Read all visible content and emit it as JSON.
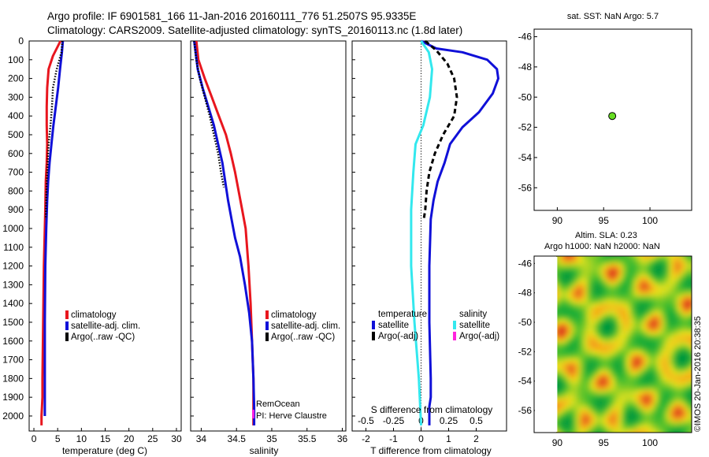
{
  "header": {
    "line1": "Argo profile: IF 6901581_166 11-Jan-2016 20160111_776 51.2507S 95.9335E",
    "line2": "Climatology: CARS2009. Satellite-adjusted climatology: synTS_20160113.nc (1.8d later)"
  },
  "colors": {
    "climatology": "#e8161e",
    "satellite": "#1010d8",
    "argo": "#000000",
    "salinity_sat": "#33e8ee",
    "salinity_argo": "#ff22dd",
    "sst_dot": "#66dd22"
  },
  "depth_ticks": [
    "0",
    "100",
    "200",
    "300",
    "400",
    "500",
    "600",
    "700",
    "800",
    "900",
    "1000",
    "1100",
    "1200",
    "1300",
    "1400",
    "1500",
    "1600",
    "1700",
    "1800",
    "1900",
    "2000"
  ],
  "legend": {
    "climatology": "climatology",
    "satellite": "satellite-adj. clim.",
    "argo": "Argo(..raw -QC)"
  },
  "remocean": {
    "line1": "RemOcean",
    "line2": "PI: Herve Claustre"
  },
  "diff_legend": {
    "temperature": "temperature",
    "salinity": "salinity",
    "satellite": "satellite",
    "argo_adj": "Argo(-adj)"
  },
  "map_top": {
    "title": "sat. SST: NaN Argo: 5.7"
  },
  "map_bottom": {
    "title1": "Altim. SLA: 0.23",
    "title2": "Argo h1000: NaN h2000: NaN"
  },
  "credit": "©IMOS 20-Jan-2016 20:38:35",
  "chart_data": [
    {
      "type": "line",
      "xlabel": "temperature (deg C)",
      "xlim": [
        -1,
        31
      ],
      "xticks": [
        "0",
        "5",
        "10",
        "15",
        "20",
        "25",
        "30"
      ],
      "ylim": [
        2080,
        0
      ],
      "series": [
        {
          "name": "climatology",
          "style": "solid",
          "color": "#e8161e",
          "x": [
            5.6,
            4.0,
            3.1,
            2.8,
            2.7,
            2.7,
            2.8,
            2.7,
            2.5,
            2.4,
            2.3,
            2.1,
            2.0,
            1.9,
            1.8,
            1.8,
            1.7,
            1.6,
            1.6
          ],
          "y": [
            0,
            80,
            150,
            250,
            350,
            450,
            550,
            650,
            750,
            900,
            1000,
            1200,
            1400,
            1600,
            1800,
            1900,
            1950,
            2000,
            2050
          ]
        },
        {
          "name": "satellite-adj. clim.",
          "style": "solid",
          "color": "#1010d8",
          "x": [
            6.1,
            5.9,
            5.5,
            5.1,
            4.6,
            4.1,
            3.7,
            3.3,
            3.0,
            2.8,
            2.6,
            2.4,
            2.3,
            2.3,
            2.3,
            2.3
          ],
          "y": [
            0,
            60,
            150,
            250,
            350,
            450,
            550,
            650,
            750,
            850,
            1000,
            1200,
            1500,
            1800,
            1950,
            2000
          ]
        },
        {
          "name": "Argo(..raw -QC)",
          "style": "dotted",
          "color": "#000000",
          "x": [
            6.0,
            5.8,
            4.8,
            4.0,
            3.8,
            3.5,
            3.1,
            2.9,
            2.7,
            2.6,
            2.5
          ],
          "y": [
            0,
            60,
            150,
            250,
            350,
            450,
            550,
            650,
            750,
            850,
            950
          ]
        }
      ]
    },
    {
      "type": "line",
      "xlabel": "salinity",
      "xlim": [
        33.85,
        36.05
      ],
      "xticks": [
        "34",
        "34.5",
        "35",
        "35.5",
        "36"
      ],
      "ylim": [
        2080,
        0
      ],
      "series": [
        {
          "name": "climatology",
          "style": "solid",
          "color": "#e8161e",
          "x": [
            33.93,
            33.96,
            34.05,
            34.15,
            34.25,
            34.35,
            34.42,
            34.48,
            34.53,
            34.58,
            34.63,
            34.67,
            34.7,
            34.72,
            34.74,
            34.74,
            34.74,
            34.74
          ],
          "y": [
            0,
            100,
            200,
            300,
            400,
            500,
            600,
            700,
            800,
            900,
            1000,
            1200,
            1400,
            1600,
            1800,
            1900,
            2000,
            2050
          ]
        },
        {
          "name": "satellite-adj. clim.",
          "style": "solid",
          "color": "#1010d8",
          "x": [
            33.9,
            33.92,
            33.95,
            34.02,
            34.1,
            34.18,
            34.24,
            34.3,
            34.34,
            34.38,
            34.43,
            34.48,
            34.55,
            34.62,
            34.68,
            34.72,
            34.74,
            34.75,
            34.75,
            34.75
          ],
          "y": [
            0,
            60,
            150,
            250,
            350,
            450,
            550,
            650,
            750,
            850,
            950,
            1050,
            1150,
            1300,
            1450,
            1600,
            1800,
            1950,
            2000,
            2050
          ]
        },
        {
          "name": "Argo(..raw -QC)",
          "style": "dotted",
          "color": "#000000",
          "x": [
            33.9,
            33.93,
            33.98,
            34.05,
            34.12,
            34.18,
            34.24,
            34.28,
            34.32
          ],
          "y": [
            0,
            100,
            200,
            300,
            400,
            500,
            600,
            700,
            780
          ]
        }
      ]
    },
    {
      "type": "line",
      "xlabel": "T difference from climatology",
      "x2label": "S difference from climatology",
      "xlim": [
        -2.5,
        3.1
      ],
      "xticks": [
        "-2",
        "-1",
        "0",
        "1",
        "2"
      ],
      "x2lim": [
        -0.625,
        0.775
      ],
      "x2ticks": [
        "-0.5",
        "-0.25",
        "0",
        "0.25",
        "0.5"
      ],
      "ylim": [
        2080,
        0
      ],
      "series": [
        {
          "name": "satellite",
          "group": "temperature",
          "style": "solid",
          "color": "#1010d8",
          "x": [
            0.0,
            0.55,
            1.5,
            2.4,
            2.75,
            2.8,
            2.6,
            2.1,
            1.5,
            1.05,
            0.85,
            0.6,
            0.45,
            0.35,
            0.3,
            0.3,
            0.35,
            0.35,
            0.3,
            0.3,
            0.3
          ],
          "y": [
            0,
            40,
            60,
            100,
            150,
            200,
            280,
            380,
            460,
            550,
            650,
            750,
            850,
            950,
            1200,
            1500,
            1800,
            1900,
            1950,
            2000,
            2050
          ]
        },
        {
          "name": "Argo(-adj)",
          "group": "temperature",
          "style": "dashed",
          "color": "#000000",
          "x": [
            0.15,
            0.55,
            0.95,
            1.2,
            1.3,
            1.2,
            0.8,
            0.5,
            0.3,
            0.2,
            0.15,
            0.1
          ],
          "y": [
            0,
            50,
            120,
            200,
            300,
            400,
            500,
            600,
            700,
            800,
            900,
            950
          ]
        },
        {
          "name": "satellite",
          "group": "salinity",
          "style": "solid",
          "color": "#33e8ee",
          "s": [
            0.0,
            0.07,
            0.1,
            0.08,
            0.02,
            -0.05,
            -0.07,
            -0.09,
            -0.09,
            -0.06,
            -0.02,
            0.0
          ],
          "y": [
            0,
            60,
            150,
            300,
            450,
            550,
            700,
            900,
            1200,
            1500,
            1800,
            2050
          ]
        }
      ]
    },
    {
      "type": "scatter",
      "title": "sat. SST: NaN Argo: 5.7",
      "xlim": [
        87.5,
        104.5
      ],
      "ylim": [
        -57.5,
        -45.5
      ],
      "xticks": [
        "90",
        "95",
        "100"
      ],
      "yticks": [
        "-46",
        "-48",
        "-50",
        "-52",
        "-54",
        "-56"
      ],
      "points": [
        {
          "x": 95.93,
          "y": -51.25
        }
      ]
    },
    {
      "type": "heatmap",
      "title": "Altim. SLA: 0.23",
      "xlim": [
        87.5,
        104.5
      ],
      "ylim": [
        -57.5,
        -45.5
      ],
      "xticks": [
        "90",
        "95",
        "100"
      ],
      "yticks": [
        "-46",
        "-48",
        "-50",
        "-52",
        "-54",
        "-56"
      ],
      "data_xrange": [
        90,
        104.5
      ]
    }
  ]
}
